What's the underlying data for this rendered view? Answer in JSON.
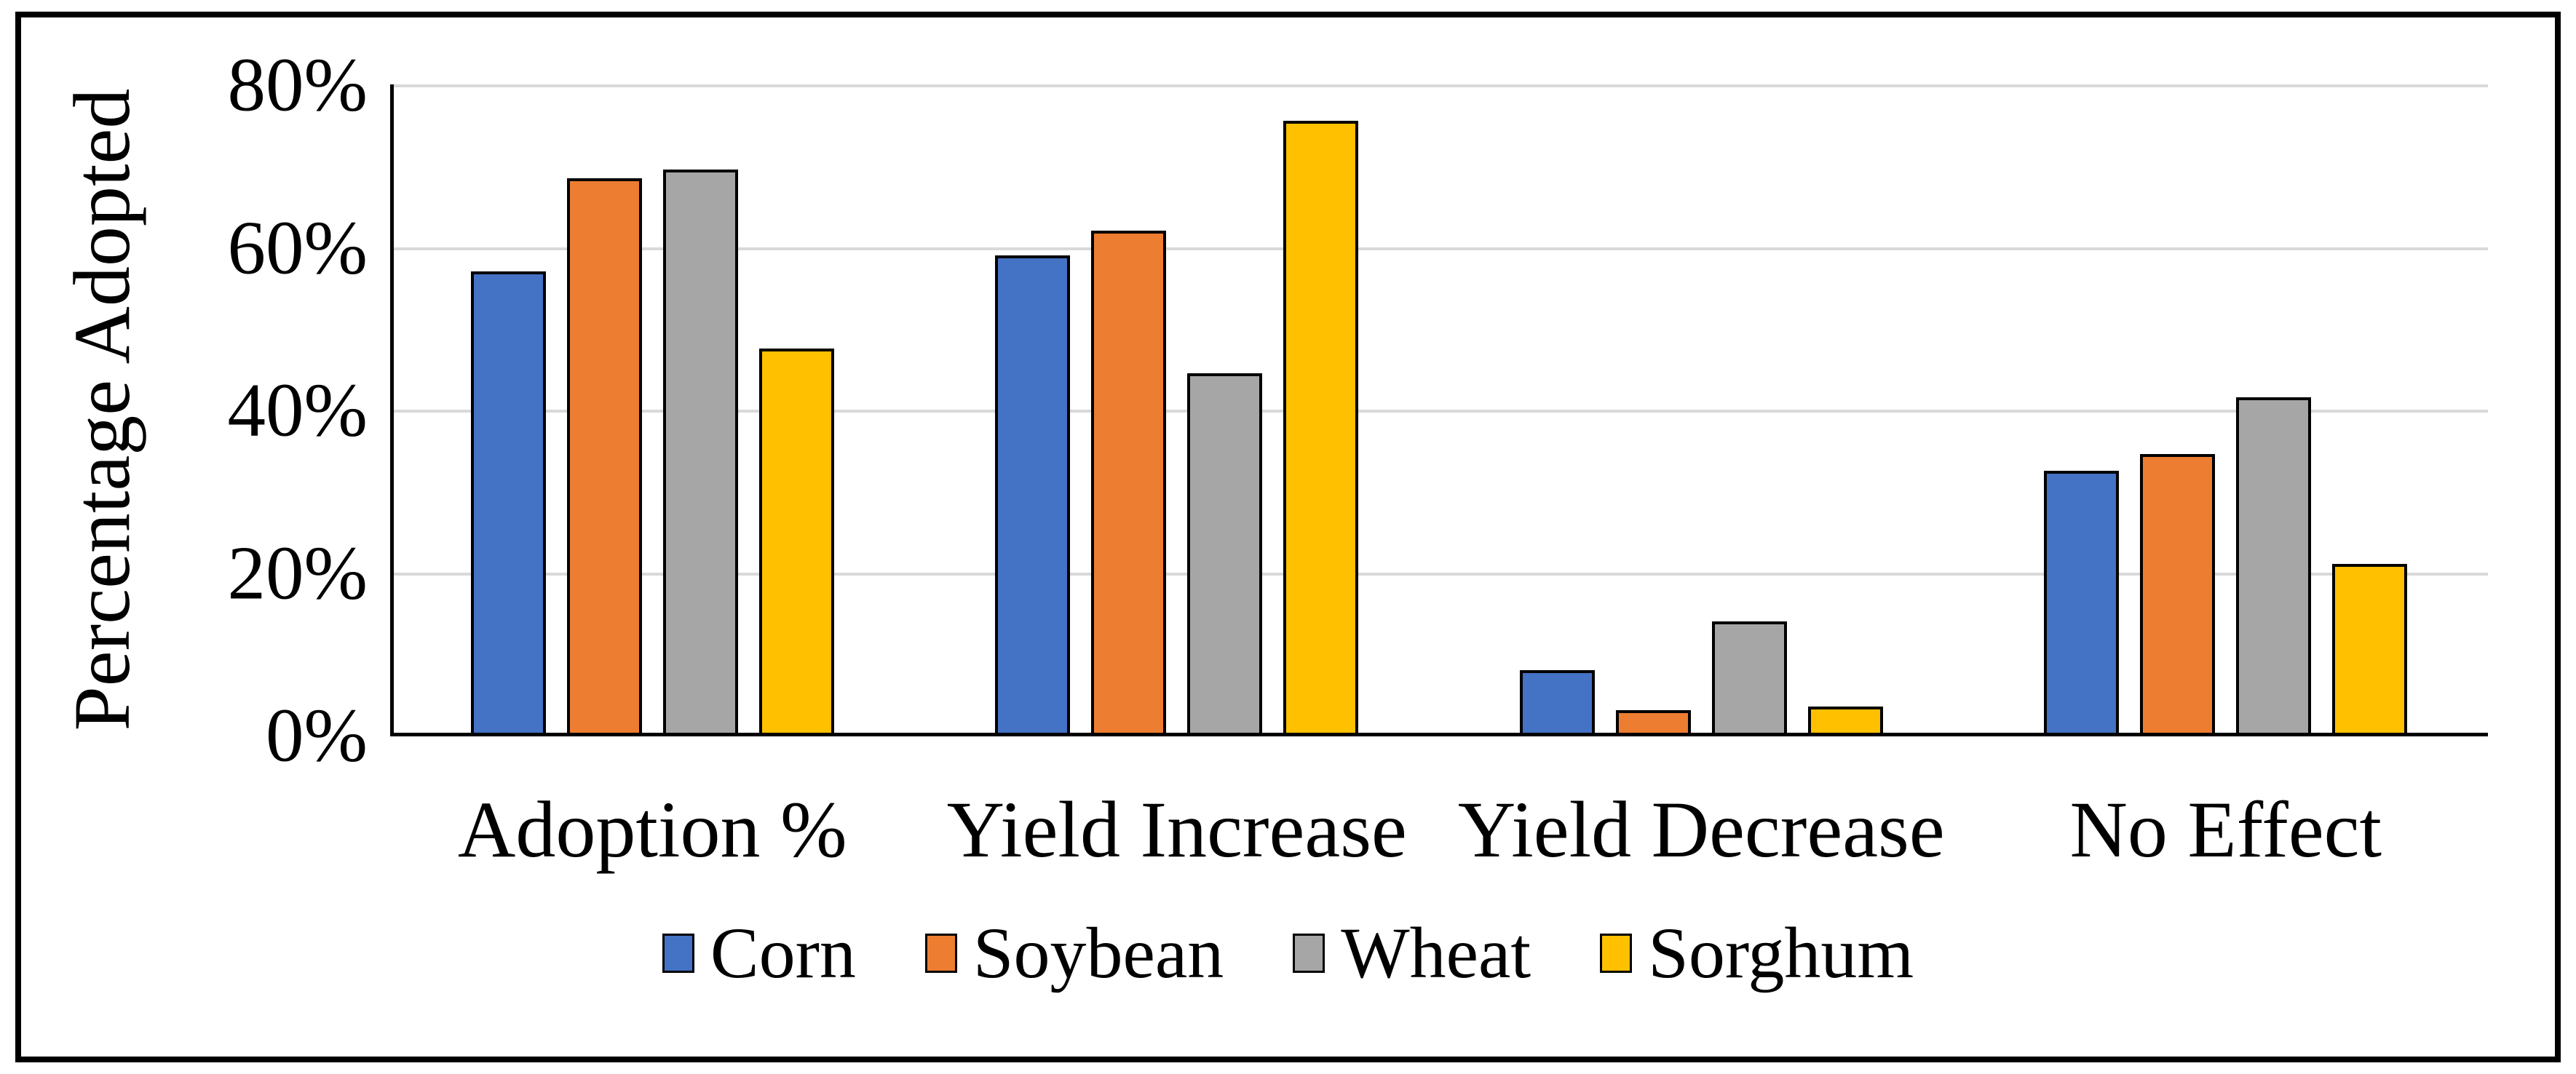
{
  "chart_data": {
    "type": "bar",
    "title": "",
    "xlabel": "",
    "ylabel": "Percentage Adopted",
    "ylim": [
      0,
      80
    ],
    "grid": "horizontal",
    "gridline_color": "#D9D9D9",
    "axis_color": "#000000",
    "bar_outline_color": "#000000",
    "background_color": "#FFFFFF",
    "legend_position": "bottom",
    "yticks": [
      {
        "value": 0,
        "label": "0%"
      },
      {
        "value": 20,
        "label": "20%"
      },
      {
        "value": 40,
        "label": "40%"
      },
      {
        "value": 60,
        "label": "60%"
      },
      {
        "value": 80,
        "label": "80%"
      }
    ],
    "categories": [
      "Adoption %",
      "Yield Increase",
      "Yield Decrease",
      "No Effect"
    ],
    "series": [
      {
        "name": "Corn",
        "color": "#4472C4",
        "values": [
          57,
          59,
          8,
          32.5
        ]
      },
      {
        "name": "Soybean",
        "color": "#ED7D31",
        "values": [
          68.5,
          62,
          3,
          34.5
        ]
      },
      {
        "name": "Wheat",
        "color": "#A6A6A6",
        "values": [
          69.5,
          44.5,
          14,
          41.5
        ]
      },
      {
        "name": "Sorghum",
        "color": "#FFC000",
        "values": [
          47.5,
          75.5,
          3.5,
          21
        ]
      }
    ]
  }
}
